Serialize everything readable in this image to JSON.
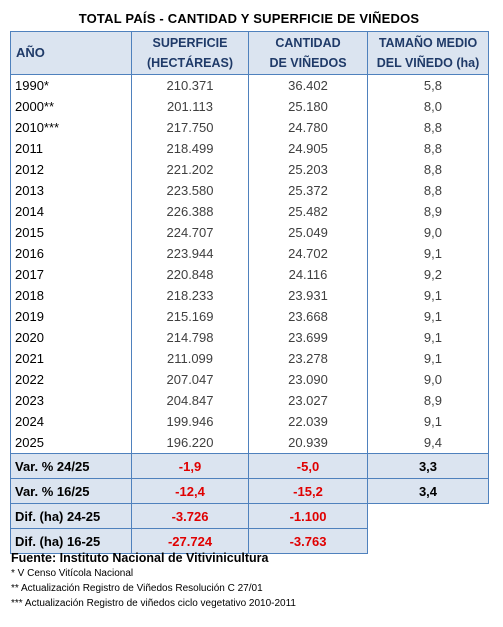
{
  "title": "TOTAL PAÍS - CANTIDAD Y SUPERFICIE DE VIÑEDOS",
  "headers": {
    "year": "AÑO",
    "surface": [
      "SUPERFICIE",
      "(HECTÁREAS)"
    ],
    "count": [
      "CANTIDAD",
      "DE VIÑEDOS"
    ],
    "size": [
      "TAMAÑO MEDIO",
      "DEL VIÑEDO (ha)"
    ]
  },
  "rows": [
    {
      "year": "1990*",
      "surface": "210.371",
      "count": "36.402",
      "size": "5,8"
    },
    {
      "year": "2000**",
      "surface": "201.113",
      "count": "25.180",
      "size": "8,0"
    },
    {
      "year": "2010***",
      "surface": "217.750",
      "count": "24.780",
      "size": "8,8"
    },
    {
      "year": "2011",
      "surface": "218.499",
      "count": "24.905",
      "size": "8,8"
    },
    {
      "year": "2012",
      "surface": "221.202",
      "count": "25.203",
      "size": "8,8"
    },
    {
      "year": "2013",
      "surface": "223.580",
      "count": "25.372",
      "size": "8,8"
    },
    {
      "year": "2014",
      "surface": "226.388",
      "count": "25.482",
      "size": "8,9"
    },
    {
      "year": "2015",
      "surface": "224.707",
      "count": "25.049",
      "size": "9,0"
    },
    {
      "year": "2016",
      "surface": "223.944",
      "count": "24.702",
      "size": "9,1"
    },
    {
      "year": "2017",
      "surface": "220.848",
      "count": "24.116",
      "size": "9,2"
    },
    {
      "year": "2018",
      "surface": "218.233",
      "count": "23.931",
      "size": "9,1"
    },
    {
      "year": "2019",
      "surface": "215.169",
      "count": "23.668",
      "size": "9,1"
    },
    {
      "year": "2020",
      "surface": "214.798",
      "count": "23.699",
      "size": "9,1"
    },
    {
      "year": "2021",
      "surface": "211.099",
      "count": "23.278",
      "size": "9,1"
    },
    {
      "year": "2022",
      "surface": "207.047",
      "count": "23.090",
      "size": "9,0"
    },
    {
      "year": "2023",
      "surface": "204.847",
      "count": "23.027",
      "size": "8,9"
    },
    {
      "year": "2024",
      "surface": "199.946",
      "count": "22.039",
      "size": "9,1"
    },
    {
      "year": "2025",
      "surface": "196.220",
      "count": "20.939",
      "size": "9,4"
    }
  ],
  "summary": [
    {
      "label": "Var. % 24/25",
      "surface": "-1,9",
      "count": "-5,0",
      "size": "3,3"
    },
    {
      "label": "Var. % 16/25",
      "surface": "-12,4",
      "count": "-15,2",
      "size": "3,4"
    },
    {
      "label": "Dif. (ha) 24-25",
      "surface": "-3.726",
      "count": "-1.100"
    },
    {
      "label": "Dif. (ha) 16-25",
      "surface": "-27.724",
      "count": "-3.763"
    }
  ],
  "source": "Fuente: Instituto Nacional de Vitivinicultura",
  "notes": [
    "* V Censo Vitícola Nacional",
    "** Actualización Registro de Viñedos Resolución C 27/01",
    "*** Actualización Registro de viñedos ciclo vegetativo 2010-2011"
  ],
  "colors": {
    "header_bg": "#dbe4f0",
    "border": "#4f81bd",
    "negative": "#e00000"
  }
}
